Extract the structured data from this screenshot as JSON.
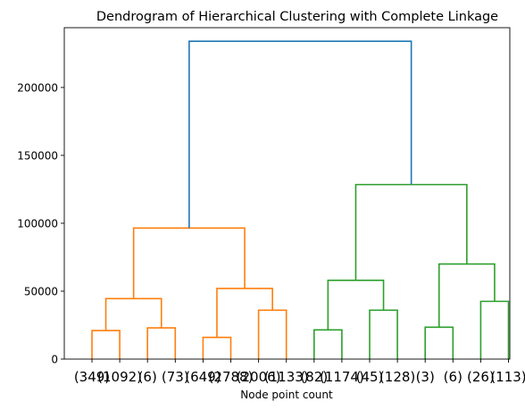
{
  "chart_data": {
    "type": "dendrogram",
    "title": "Dendrogram of Hierarchical Clustering with Complete Linkage",
    "xlabel": "Node point count",
    "ylabel": "",
    "ylim": [
      0,
      244000
    ],
    "yticks": [
      0,
      50000,
      100000,
      150000,
      200000
    ],
    "leaves": [
      "(349)",
      "(1092)",
      "(6)",
      "(73)",
      "(649)",
      "(2788)",
      "(2006)",
      "(1133)",
      "(82)",
      "(1174)",
      "(45)",
      "(128)",
      "(3)",
      "(6)",
      "(26)",
      "(113)"
    ],
    "merges": [
      {
        "left": 0,
        "right": 1,
        "height": 21000,
        "color": "#ff7f0e"
      },
      {
        "left": 2,
        "right": 3,
        "height": 23000,
        "color": "#ff7f0e"
      },
      {
        "left": 4,
        "right": 5,
        "height": 16000,
        "color": "#ff7f0e"
      },
      {
        "left": 6,
        "right": 7,
        "height": 36000,
        "color": "#ff7f0e"
      },
      {
        "left": 16,
        "right": 17,
        "height": 44500,
        "color": "#ff7f0e"
      },
      {
        "left": 18,
        "right": 19,
        "height": 52000,
        "color": "#ff7f0e"
      },
      {
        "left": 20,
        "right": 21,
        "height": 96500,
        "color": "#ff7f0e"
      },
      {
        "left": 8,
        "right": 9,
        "height": 21500,
        "color": "#2ca02c"
      },
      {
        "left": 10,
        "right": 11,
        "height": 36000,
        "color": "#2ca02c"
      },
      {
        "left": 12,
        "right": 13,
        "height": 23500,
        "color": "#2ca02c"
      },
      {
        "left": 14,
        "right": 15,
        "height": 42500,
        "color": "#2ca02c"
      },
      {
        "left": 23,
        "right": 24,
        "height": 58000,
        "color": "#2ca02c"
      },
      {
        "left": 25,
        "right": 26,
        "height": 70000,
        "color": "#2ca02c"
      },
      {
        "left": 27,
        "right": 28,
        "height": 128500,
        "color": "#2ca02c"
      },
      {
        "left": 22,
        "right": 29,
        "height": 234000,
        "color": "#1f77b4"
      }
    ]
  }
}
